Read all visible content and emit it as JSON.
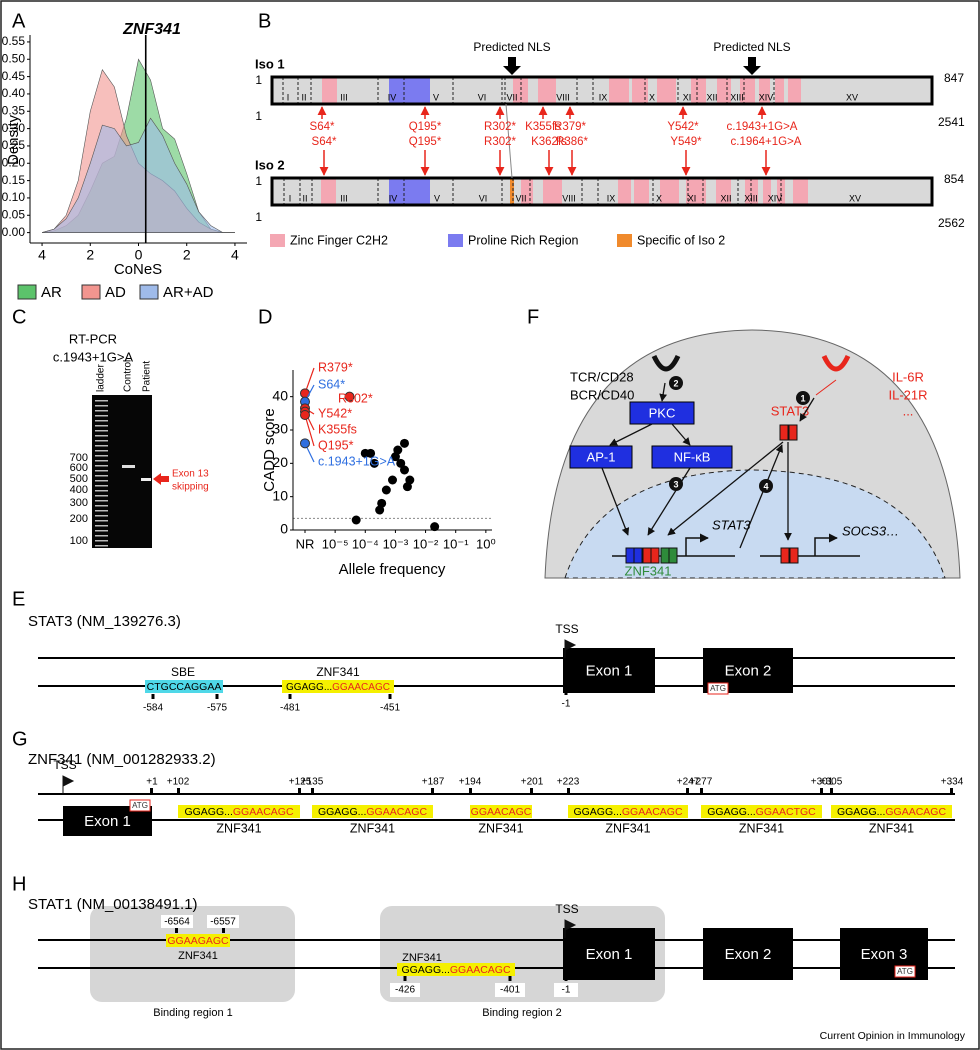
{
  "panel_labels": [
    "A",
    "B",
    "C",
    "D",
    "E",
    "F",
    "G",
    "H"
  ],
  "chart_data": [
    {
      "type": "area",
      "title": "ZNF341",
      "x_label": "CoNeS",
      "y_label": "Density",
      "x": [
        -4,
        -3.5,
        -3,
        -2.5,
        -2,
        -1.5,
        -1,
        -0.5,
        0,
        0.5,
        1,
        1.5,
        2,
        2.5,
        3,
        3.5,
        4
      ],
      "series": [
        {
          "name": "AR",
          "color": "#5cc36b",
          "values": [
            0,
            0.005,
            0.02,
            0.05,
            0.12,
            0.2,
            0.22,
            0.33,
            0.5,
            0.44,
            0.3,
            0.27,
            0.17,
            0.06,
            0.01,
            0,
            0
          ]
        },
        {
          "name": "AD",
          "color": "#f2958f",
          "values": [
            0,
            0.01,
            0.05,
            0.15,
            0.35,
            0.47,
            0.42,
            0.28,
            0.2,
            0.17,
            0.15,
            0.12,
            0.07,
            0.03,
            0.01,
            0,
            0
          ]
        },
        {
          "name": "AR+AD",
          "color": "#9fbbea",
          "values": [
            0,
            0.01,
            0.04,
            0.1,
            0.2,
            0.31,
            0.3,
            0.25,
            0.26,
            0.33,
            0.28,
            0.2,
            0.14,
            0.06,
            0.02,
            0,
            0
          ]
        }
      ],
      "reference_line": 0.3,
      "xlim": [
        -4.5,
        4.5
      ],
      "xticks": [
        {
          "value": -4,
          "label": "4"
        },
        {
          "value": -2,
          "label": "2"
        },
        0,
        2,
        4
      ],
      "ylim": [
        -0.03,
        0.57
      ],
      "yticks": [
        {
          "value": 0,
          "label": "0.00"
        },
        0.05,
        {
          "value": 0.1,
          "label": "0.10"
        },
        0.15,
        {
          "value": 0.2,
          "label": "0.20"
        },
        0.25,
        {
          "value": 0.3,
          "label": "0.30"
        },
        0.35,
        {
          "value": 0.4,
          "label": "0.40"
        },
        0.45,
        {
          "value": 0.5,
          "label": "0.50"
        },
        0.55
      ],
      "legend": "bottom"
    },
    {
      "type": "scatter",
      "x_label": "Allele frequency",
      "y_label": "CADD score",
      "xlog": true,
      "x": [
        5e-05,
        0.0001,
        0.00015,
        0.0002,
        0.0003,
        0.00035,
        0.0005,
        0.0008,
        0.001,
        0.0012,
        0.0015,
        0.002,
        0.002,
        0.0025,
        0.003,
        0.02
      ],
      "values": [
        3,
        23,
        23,
        20,
        6,
        8,
        12,
        15,
        22,
        24,
        20,
        26,
        18,
        13,
        15,
        1
      ],
      "color": "#000000",
      "highlighted": [
        {
          "label": "R379*",
          "x": 1e-06,
          "y": 41,
          "color": "#e8261c"
        },
        {
          "label": "S64*",
          "x": 1e-06,
          "y": 38.5,
          "color": "#2f6fe0"
        },
        {
          "label": "R302*",
          "x": 3e-05,
          "y": 40,
          "color": "#e8261c"
        },
        {
          "label": "Y542*",
          "x": 1e-06,
          "y": 36.5,
          "color": "#e8261c"
        },
        {
          "label": "K355fs",
          "x": 1e-06,
          "y": 35.5,
          "color": "#e8261c"
        },
        {
          "label": "Q195*",
          "x": 1e-06,
          "y": 34.5,
          "color": "#e8261c"
        },
        {
          "label": "c.1943+1G>A",
          "x": 1e-06,
          "y": 26,
          "color": "#2f6fe0"
        }
      ],
      "threshold": 3.5,
      "xlim": [
        4e-07,
        1.6
      ],
      "xticks": [
        {
          "value": 1e-06,
          "label": "NR"
        },
        {
          "value": 1e-05,
          "label": "10⁻⁵"
        },
        {
          "value": 0.0001,
          "label": "10⁻⁴"
        },
        {
          "value": 0.001,
          "label": "10⁻³"
        },
        {
          "value": 0.01,
          "label": "10⁻²"
        },
        {
          "value": 0.1,
          "label": "10⁻¹"
        },
        {
          "value": 1,
          "label": "10⁰"
        }
      ],
      "ylim": [
        0,
        48
      ],
      "yticks": [
        0,
        10,
        20,
        30,
        40
      ]
    }
  ],
  "isoforms": {
    "nls_label": [
      "Predicted NLS",
      "Predicted NLS"
    ],
    "iso1": {
      "name": "Iso 1",
      "start_top": 1,
      "start_bottom": 1,
      "end_top": 847,
      "end_bottom": 2541,
      "exons": [
        "I",
        "II",
        "III",
        "IV",
        "V",
        "VI",
        "VII",
        "VIII",
        "IX",
        "X",
        "XI",
        "XII",
        "XIII",
        "XIV",
        "XV"
      ]
    },
    "iso2": {
      "name": "Iso 2",
      "start_top": 1,
      "start_bottom": 1,
      "end_top": 854,
      "end_bottom": 2562,
      "exons": [
        "I",
        "II",
        "III",
        "IV",
        "V",
        "VI",
        "VII",
        "VIII",
        "IX",
        "X",
        "XI",
        "XII",
        "XIII",
        "XIV",
        "XV"
      ]
    },
    "mutations_iso1": [
      "S64*",
      "Q195*",
      "R302*",
      "K355fs",
      "R379*",
      "Y542*",
      "c.1943+1G>A"
    ],
    "mutations_iso2": [
      "S64*",
      "Q195*",
      "R302*",
      "K362fs",
      "R386*",
      "Y549*",
      "c.1964+1G>A"
    ],
    "legend": [
      "Zinc Finger C2H2",
      "Proline Rich Region",
      "Specific of Iso 2"
    ]
  },
  "gel": {
    "title": "RT-PCR",
    "variant": "c.1943+1G>A",
    "lanes": [
      "ladder",
      "Control",
      "Patient"
    ],
    "ladder_sizes": [
      700,
      600,
      500,
      400,
      300,
      200,
      100
    ],
    "annotation": [
      "Exon 13",
      "skipping"
    ]
  },
  "pathway": {
    "receptor_left": [
      "TCR/CD28",
      "BCR/CD40"
    ],
    "receptor_right": [
      "IL-6R",
      "IL-21R",
      "..."
    ],
    "stat3": "STAT3",
    "pkc": "PKC",
    "ap1": "AP-1",
    "nfkb": "NF-κB",
    "genes": [
      "STAT3",
      "SOCS3…"
    ],
    "tf": "ZNF341",
    "steps": [
      1,
      2,
      3,
      4
    ]
  },
  "stat3_promoter": {
    "title": "STAT3 (NM_139276.3)",
    "tss": "TSS",
    "exons": [
      "Exon 1",
      "Exon 2"
    ],
    "atg": "ATG",
    "sbe": {
      "label": "SBE",
      "seq": "CTGCCAGGAA",
      "start": -584,
      "end": -575
    },
    "site": {
      "label": "ZNF341",
      "seq_prefix": "GGAGG...",
      "motif": "GGAACAGC",
      "start": -481,
      "end": -451
    },
    "tss_pos": -1
  },
  "znf341_promoter": {
    "title": "ZNF341 (NM_001282933.2)",
    "tss": "TSS",
    "exon": "Exon 1",
    "atg": "ATG",
    "plus1": "+1",
    "sites": [
      {
        "start": "+102",
        "end": "+125",
        "seq_prefix": "GGAGG...",
        "motif": "GGAACAGC",
        "label": "ZNF341"
      },
      {
        "start": "+135",
        "end": "+187",
        "seq_prefix": "GGAGG...",
        "motif": "GGAACAGC",
        "label": "ZNF341"
      },
      {
        "start": "+194",
        "end": "+201",
        "motif": "GGAACAGC",
        "label": "ZNF341"
      },
      {
        "start": "+223",
        "end": "+247",
        "seq_prefix": "GGAGG...",
        "motif": "GGAACAGC",
        "label": "ZNF341"
      },
      {
        "start": "+277",
        "end": "+301",
        "seq_prefix": "GGAGG...",
        "motif": "GGAACTGC",
        "label": "ZNF341"
      },
      {
        "start": "+305",
        "end": "+334",
        "seq_prefix": "GGAGG...",
        "motif": "GGAACAGC",
        "label": "ZNF341"
      }
    ]
  },
  "stat1_promoter": {
    "title": "STAT1 (NM_00138491.1)",
    "region1": {
      "start": -6564,
      "end": -6557,
      "motif": "GGAAGAGC",
      "label": "ZNF341",
      "name": "Binding region 1"
    },
    "region2": {
      "label": "ZNF341",
      "seq_prefix": "GGAGG...",
      "motif": "GGAACAGC",
      "start": -426,
      "end": -401,
      "tss_pos": -1,
      "name": "Binding region 2"
    },
    "tss": "TSS",
    "exons": [
      "Exon 1",
      "Exon 2",
      "Exon 3"
    ],
    "atg": "ATG"
  },
  "credit": "Current Opinion in Immunology"
}
